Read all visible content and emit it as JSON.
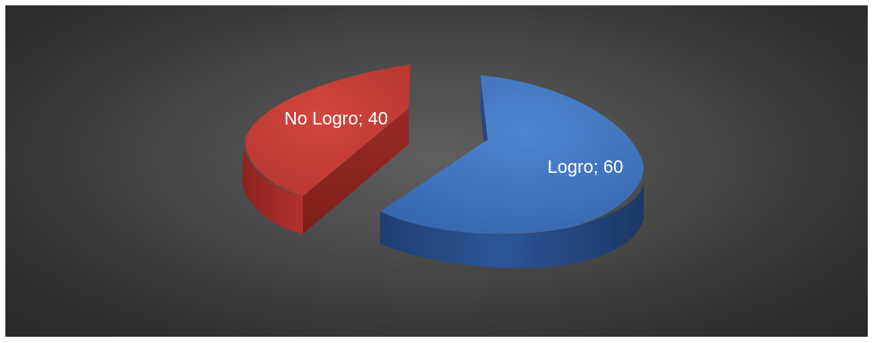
{
  "chart_data": {
    "type": "pie",
    "style": "3d-exploded",
    "slices": [
      {
        "name": "Logro",
        "value": 60,
        "label": "Logro; 60",
        "color": "#3d6fb8"
      },
      {
        "name": "No Logro",
        "value": 40,
        "label": "No Logro; 40",
        "color": "#bd3a33"
      }
    ],
    "legend": "none"
  }
}
